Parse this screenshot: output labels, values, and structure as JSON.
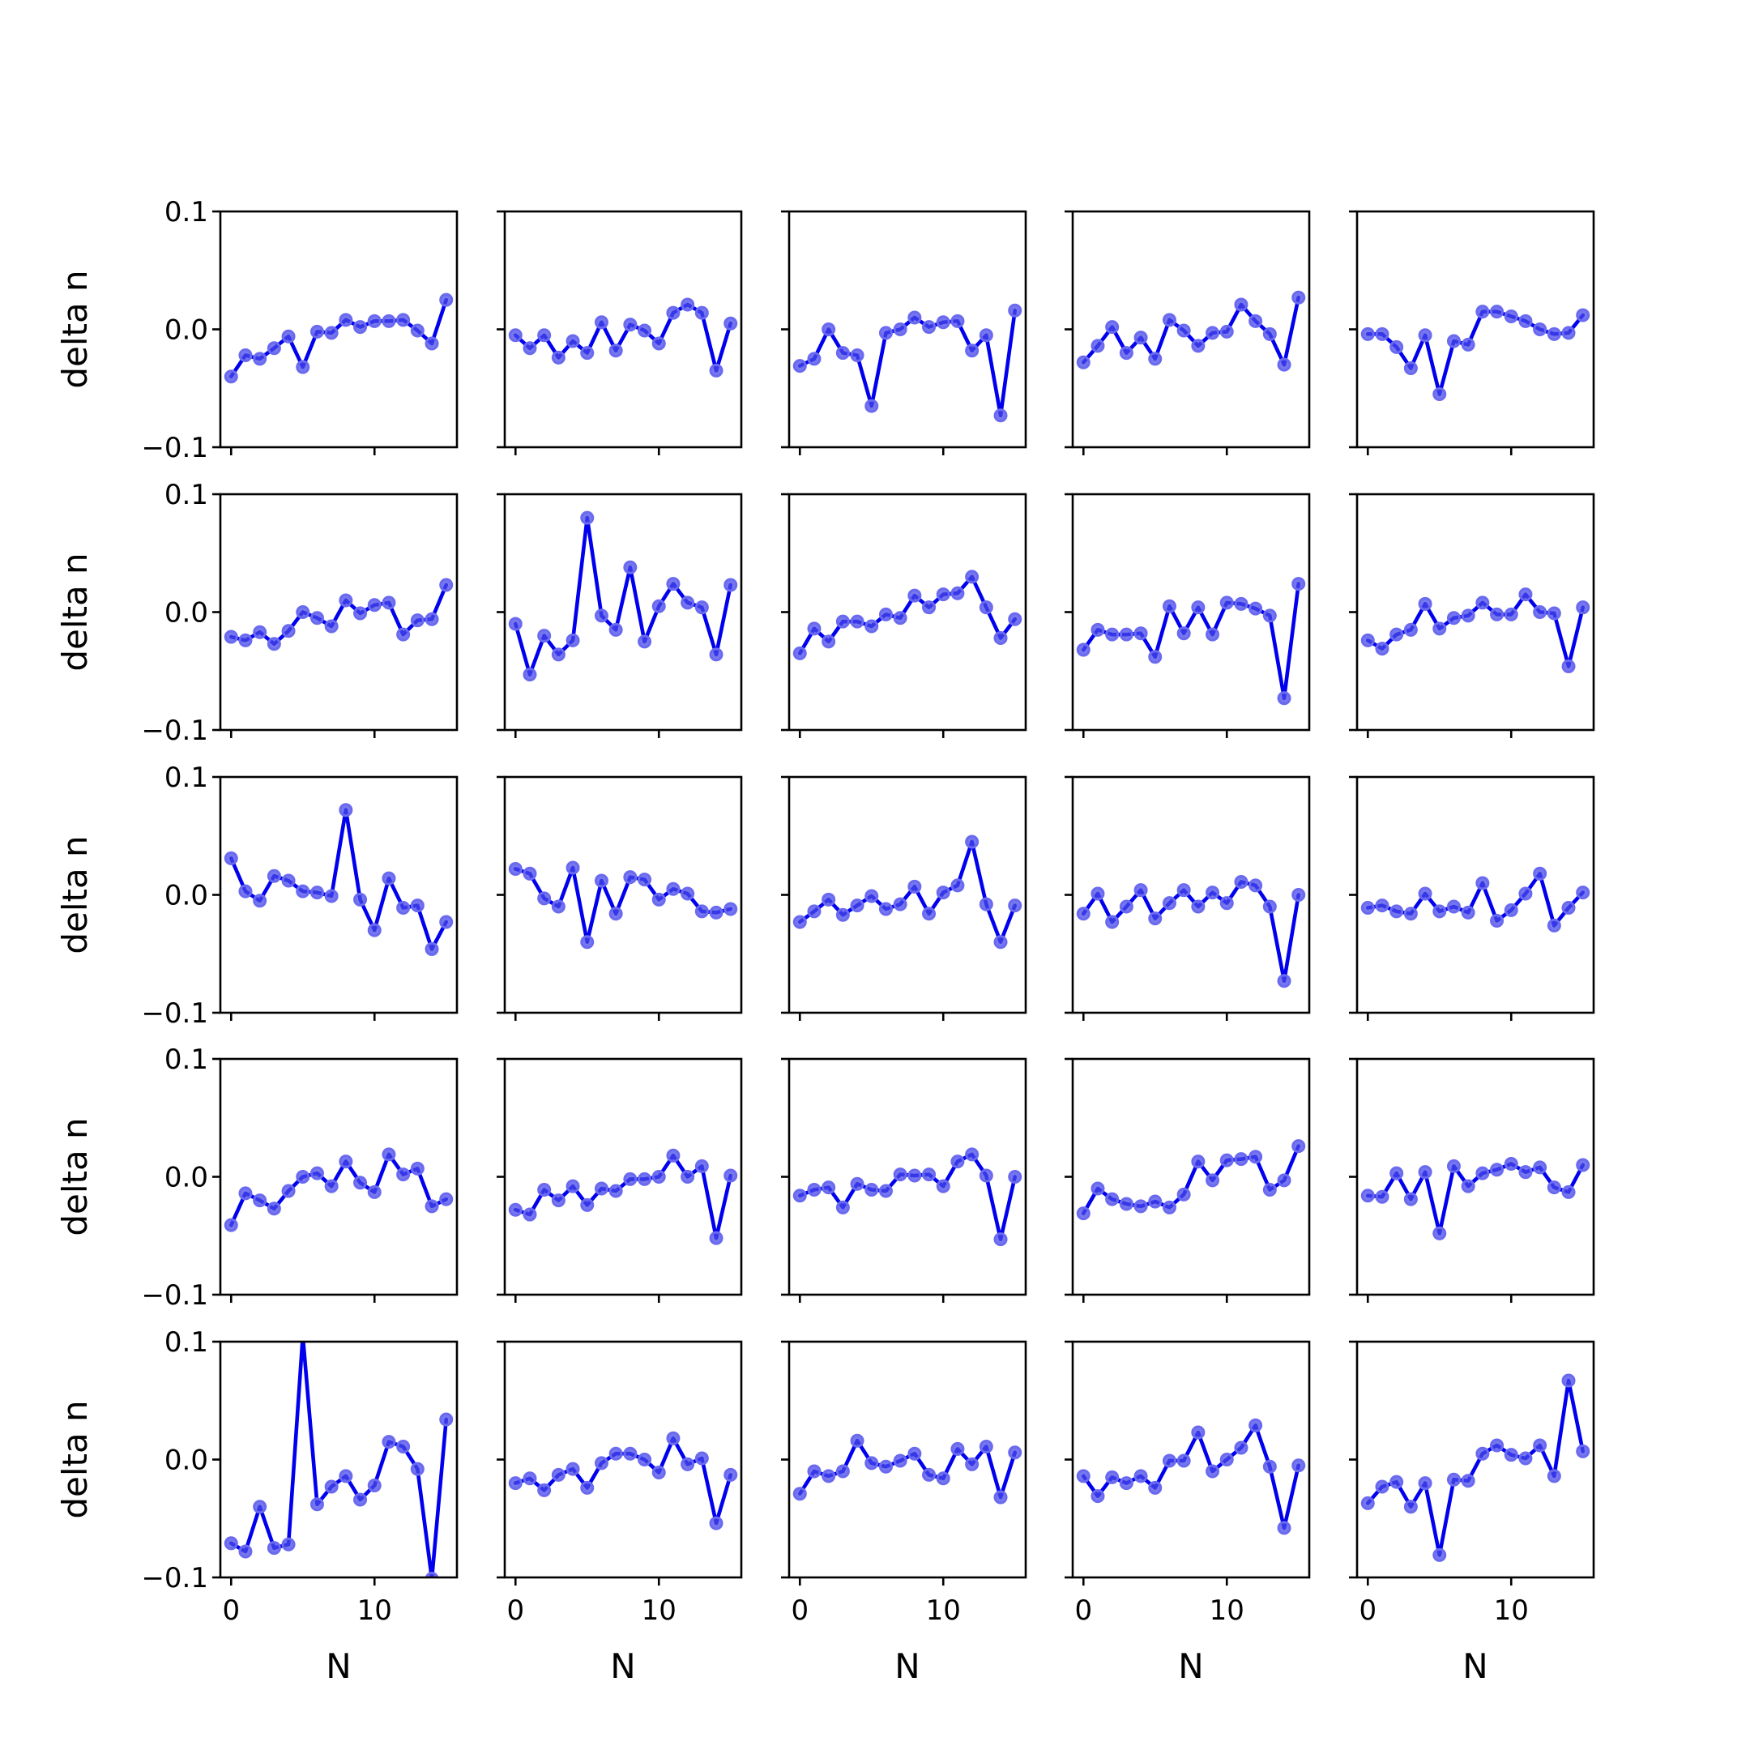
{
  "chart_data": {
    "type": "line",
    "layout": "5x5 small multiples",
    "xlabel": "N",
    "ylabel": "delta n",
    "xlim": [
      -0.75,
      15.75
    ],
    "ylim": [
      -0.1,
      0.1
    ],
    "yticks": [
      0.1,
      0.0,
      -0.1
    ],
    "ytick_labels": [
      "0.1",
      "0.0",
      "−0.1"
    ],
    "xticks": [
      0,
      10
    ],
    "xtick_labels": [
      "0",
      "10"
    ],
    "x": [
      0,
      1,
      2,
      3,
      4,
      5,
      6,
      7,
      8,
      9,
      10,
      11,
      12,
      13,
      14,
      15
    ],
    "line_color": "#0000ee",
    "marker_color": "#4a4ae8",
    "grid": false,
    "panels": [
      [
        -0.04,
        -0.022,
        -0.025,
        -0.016,
        -0.006,
        -0.032,
        -0.002,
        -0.003,
        0.008,
        0.002,
        0.007,
        0.007,
        0.008,
        -0.001,
        -0.012,
        0.025
      ],
      [
        -0.005,
        -0.016,
        -0.005,
        -0.024,
        -0.01,
        -0.02,
        0.006,
        -0.018,
        0.004,
        -0.001,
        -0.012,
        0.014,
        0.021,
        0.014,
        -0.035,
        0.005
      ],
      [
        -0.031,
        -0.025,
        0.0,
        -0.02,
        -0.022,
        -0.065,
        -0.003,
        0.0,
        0.01,
        0.002,
        0.006,
        0.007,
        -0.018,
        -0.005,
        -0.073,
        0.016
      ],
      [
        -0.028,
        -0.014,
        0.002,
        -0.02,
        -0.007,
        -0.025,
        0.008,
        -0.001,
        -0.014,
        -0.003,
        -0.002,
        0.021,
        0.007,
        -0.004,
        -0.03,
        0.027
      ],
      [
        -0.004,
        -0.004,
        -0.015,
        -0.033,
        -0.005,
        -0.055,
        -0.01,
        -0.013,
        0.015,
        0.015,
        0.011,
        0.007,
        0.0,
        -0.004,
        -0.003,
        0.012
      ],
      [
        -0.021,
        -0.024,
        -0.017,
        -0.027,
        -0.016,
        0.0,
        -0.005,
        -0.012,
        0.01,
        -0.001,
        0.006,
        0.008,
        -0.019,
        -0.007,
        -0.006,
        0.023
      ],
      [
        -0.01,
        -0.053,
        -0.02,
        -0.036,
        -0.024,
        0.08,
        -0.003,
        -0.015,
        0.038,
        -0.025,
        0.005,
        0.024,
        0.008,
        0.004,
        -0.036,
        0.023
      ],
      [
        -0.035,
        -0.014,
        -0.025,
        -0.008,
        -0.008,
        -0.012,
        -0.002,
        -0.005,
        0.014,
        0.004,
        0.015,
        0.016,
        0.03,
        0.004,
        -0.022,
        -0.006
      ],
      [
        -0.032,
        -0.015,
        -0.019,
        -0.019,
        -0.018,
        -0.038,
        0.005,
        -0.018,
        0.004,
        -0.019,
        0.008,
        0.007,
        0.003,
        -0.003,
        -0.073,
        0.024
      ],
      [
        -0.024,
        -0.031,
        -0.019,
        -0.015,
        0.007,
        -0.014,
        -0.005,
        -0.003,
        0.008,
        -0.002,
        -0.002,
        0.015,
        0.0,
        -0.001,
        -0.046,
        0.004
      ],
      [
        0.031,
        0.003,
        -0.005,
        0.016,
        0.012,
        0.003,
        0.002,
        -0.001,
        0.072,
        -0.004,
        -0.03,
        0.014,
        -0.011,
        -0.009,
        -0.046,
        -0.023
      ],
      [
        0.022,
        0.018,
        -0.003,
        -0.01,
        0.023,
        -0.04,
        0.012,
        -0.016,
        0.015,
        0.013,
        -0.004,
        0.005,
        0.001,
        -0.014,
        -0.015,
        -0.012
      ],
      [
        -0.023,
        -0.014,
        -0.004,
        -0.017,
        -0.009,
        -0.001,
        -0.012,
        -0.008,
        0.007,
        -0.016,
        0.002,
        0.008,
        0.045,
        -0.008,
        -0.04,
        -0.009
      ],
      [
        -0.016,
        0.001,
        -0.023,
        -0.01,
        0.004,
        -0.02,
        -0.007,
        0.004,
        -0.01,
        0.002,
        -0.007,
        0.011,
        0.008,
        -0.01,
        -0.073,
        0.0
      ],
      [
        -0.011,
        -0.009,
        -0.014,
        -0.016,
        0.001,
        -0.014,
        -0.01,
        -0.015,
        0.01,
        -0.022,
        -0.013,
        0.001,
        0.018,
        -0.026,
        -0.011,
        0.002
      ],
      [
        -0.041,
        -0.014,
        -0.02,
        -0.027,
        -0.012,
        0.0,
        0.003,
        -0.008,
        0.013,
        -0.005,
        -0.013,
        0.019,
        0.002,
        0.007,
        -0.025,
        -0.019
      ],
      [
        -0.028,
        -0.032,
        -0.011,
        -0.02,
        -0.008,
        -0.024,
        -0.01,
        -0.012,
        -0.002,
        -0.002,
        0.0,
        0.018,
        0.0,
        0.009,
        -0.052,
        0.001
      ],
      [
        -0.016,
        -0.011,
        -0.009,
        -0.026,
        -0.006,
        -0.011,
        -0.012,
        0.002,
        0.001,
        0.002,
        -0.008,
        0.013,
        0.019,
        0.001,
        -0.053,
        0.0
      ],
      [
        -0.031,
        -0.01,
        -0.019,
        -0.023,
        -0.025,
        -0.021,
        -0.026,
        -0.015,
        0.013,
        -0.003,
        0.014,
        0.015,
        0.017,
        -0.011,
        -0.003,
        0.026
      ],
      [
        -0.016,
        -0.017,
        0.003,
        -0.019,
        0.004,
        -0.048,
        0.009,
        -0.008,
        0.003,
        0.006,
        0.011,
        0.004,
        0.008,
        -0.009,
        -0.013,
        0.01
      ],
      [
        -0.071,
        -0.078,
        -0.04,
        -0.075,
        -0.072,
        0.105,
        -0.038,
        -0.023,
        -0.014,
        -0.034,
        -0.022,
        0.015,
        0.011,
        -0.008,
        -0.101,
        0.034
      ],
      [
        -0.02,
        -0.016,
        -0.026,
        -0.013,
        -0.008,
        -0.024,
        -0.003,
        0.005,
        0.005,
        0.0,
        -0.011,
        0.018,
        -0.004,
        0.001,
        -0.054,
        -0.013
      ],
      [
        -0.029,
        -0.01,
        -0.014,
        -0.01,
        0.016,
        -0.003,
        -0.006,
        -0.001,
        0.005,
        -0.013,
        -0.016,
        0.009,
        -0.004,
        0.011,
        -0.032,
        0.006
      ],
      [
        -0.014,
        -0.031,
        -0.015,
        -0.02,
        -0.014,
        -0.024,
        -0.001,
        -0.001,
        0.023,
        -0.01,
        0.0,
        0.01,
        0.029,
        -0.006,
        -0.058,
        -0.005
      ],
      [
        -0.037,
        -0.023,
        -0.019,
        -0.04,
        -0.02,
        -0.081,
        -0.017,
        -0.018,
        0.005,
        0.012,
        0.004,
        0.001,
        0.012,
        -0.014,
        0.067,
        0.007
      ]
    ]
  }
}
